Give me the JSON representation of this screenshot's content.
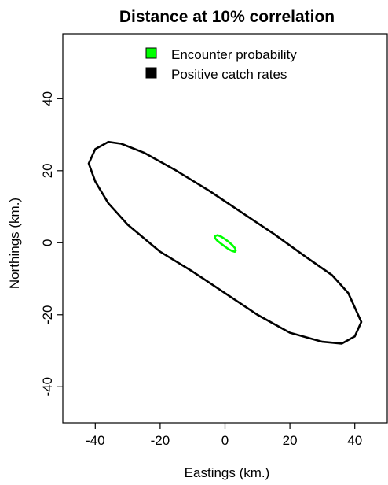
{
  "chart_data": {
    "type": "line",
    "title": "Distance at 10% correlation",
    "xlabel": "Eastings (km.)",
    "ylabel": "Northings (km.)",
    "xlim": [
      -50,
      50
    ],
    "ylim": [
      -50,
      58
    ],
    "x_ticks": [
      -40,
      -20,
      0,
      20,
      40
    ],
    "y_ticks": [
      -40,
      -20,
      0,
      20,
      40
    ],
    "grid": false,
    "legend_position": "top",
    "series": [
      {
        "name": "Encounter probability",
        "color": "#00ff00",
        "shape": "ellipse",
        "x": [
          -2.9,
          -2.3,
          -1.2,
          0.0,
          1.2,
          2.3,
          3.1,
          3.3,
          3.0,
          2.2,
          1.1,
          -0.1,
          -1.3,
          -2.4,
          -3.0,
          -3.2,
          -2.9
        ],
        "y": [
          1.9,
          2.1,
          1.7,
          1.0,
          0.2,
          -0.7,
          -1.5,
          -2.2,
          -2.5,
          -2.3,
          -1.8,
          -1.0,
          -0.2,
          0.6,
          1.2,
          1.7,
          1.9
        ]
      },
      {
        "name": "Positive catch rates",
        "color": "#000000",
        "shape": "ellipse",
        "x": [
          -36.0,
          -32.0,
          -25.0,
          -15.0,
          -5.0,
          5.0,
          15.0,
          25.0,
          33.0,
          38.0,
          42.0,
          40.0,
          36.0,
          30.0,
          20.0,
          10.0,
          0.0,
          -10.0,
          -20.0,
          -30.0,
          -36.0,
          -40.0,
          -42.0,
          -40.0,
          -36.0
        ],
        "y": [
          28.0,
          27.5,
          25.0,
          20.0,
          14.5,
          8.5,
          2.5,
          -4.0,
          -9.0,
          -14.0,
          -22.0,
          -26.0,
          -28.0,
          -27.5,
          -25.0,
          -20.0,
          -14.0,
          -8.0,
          -2.5,
          5.0,
          11.0,
          17.0,
          22.0,
          26.0,
          28.0
        ]
      }
    ]
  }
}
